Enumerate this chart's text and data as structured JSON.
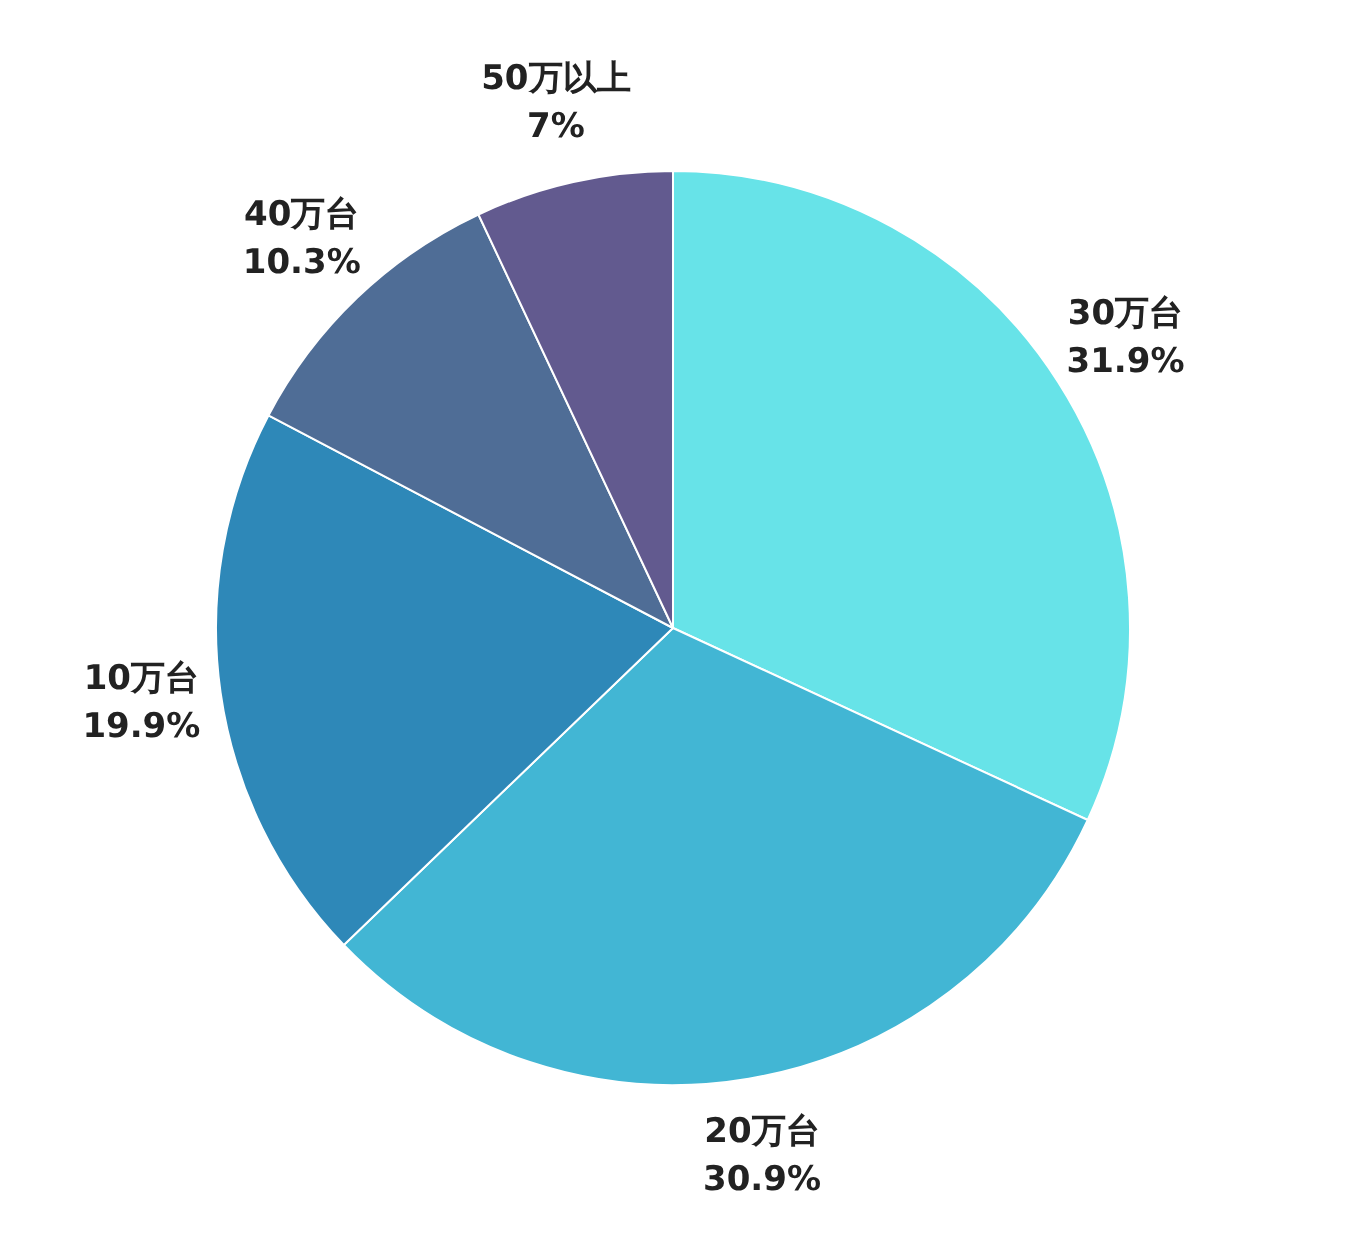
{
  "chart_data": {
    "type": "pie",
    "categories": [
      "30万台",
      "20万台",
      "10万台",
      "40万台",
      "50万以上"
    ],
    "values": [
      31.9,
      30.9,
      19.9,
      10.3,
      7
    ],
    "value_labels": [
      "31.9%",
      "30.9%",
      "19.9%",
      "10.3%",
      "7%"
    ],
    "colors": [
      "#67e3e8",
      "#42b6d4",
      "#2e88b8",
      "#4f6d96",
      "#625a8f"
    ],
    "legend": false
  }
}
